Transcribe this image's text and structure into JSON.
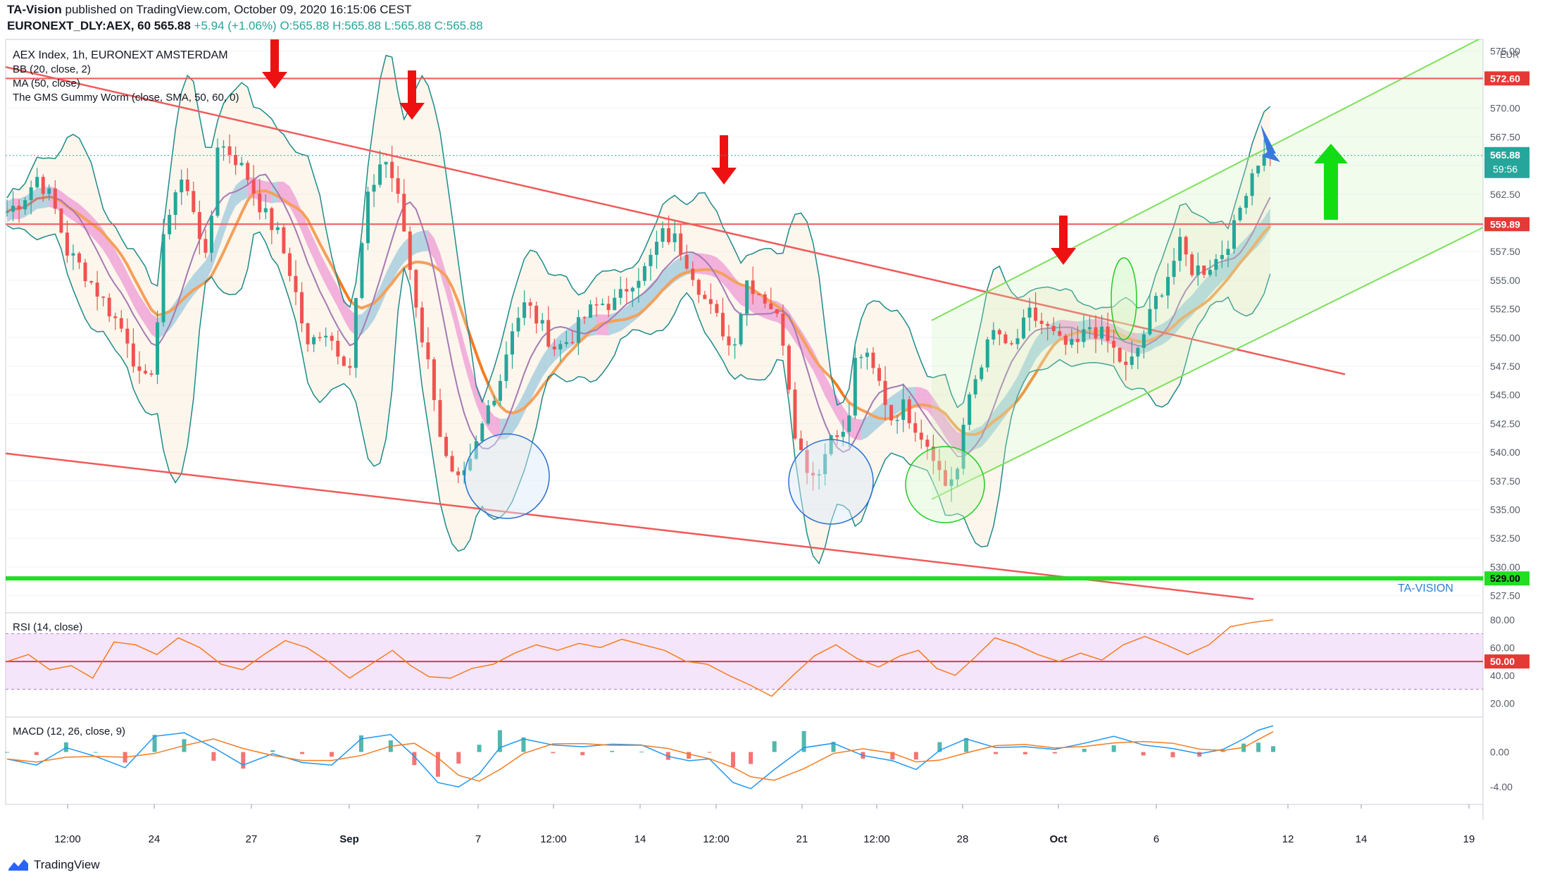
{
  "header": {
    "publisher_line": "TA-Vision published on TradingView.com, October 09, 2020 16:15:06 CEST",
    "publisher": "TA-Vision",
    "symbol_line": "EURONEXT_DLY:AEX, 60",
    "price": "565.88",
    "change": "+5.94 (+1.06%)",
    "ohlc": "O:565.88 H:565.88 L:565.88 C:565.88"
  },
  "legend": {
    "title": "AEX Index, 1h, EURONEXT AMSTERDAM",
    "bb": "BB (20, close, 2)",
    "ma": "MA (50, close)",
    "gms": "The GMS Gummy Worm (close, SMA, 50, 60, 0)",
    "rsi": "RSI (14, close)",
    "macd": "MACD (12, 26, close, 9)"
  },
  "watermark": "TA-VISION",
  "footer": {
    "brand": "TradingView"
  },
  "colors": {
    "up": "#26a69a",
    "down": "#ef5350",
    "trendline": "#f05a5a",
    "channel": "#7ee05a",
    "support": "#22dd22",
    "ma50": "#7b3fa8",
    "ema": "#f57c20",
    "bb": "#1d8a8a",
    "ribbon_pink": "#e040d0",
    "ribbon_blue": "#3aa0e0",
    "rsi_line": "#f57c20",
    "arrow_red": "#ee1111",
    "arrow_green": "#11dd11",
    "arrow_blue": "#3a78e0"
  },
  "chart_data": {
    "type": "candlestick",
    "currency": "EUR",
    "x_ticks": [
      "12:00",
      "24",
      "27",
      "Sep",
      "7",
      "12:00",
      "14",
      "12:00",
      "21",
      "12:00",
      "28",
      "Oct",
      "6",
      "12",
      "14",
      "19"
    ],
    "price_axis": {
      "ticks": [
        "575.00",
        "572.50",
        "570.00",
        "567.50",
        "565.00",
        "562.50",
        "560.00",
        "557.50",
        "555.00",
        "552.50",
        "550.00",
        "547.50",
        "545.00",
        "542.50",
        "540.00",
        "537.50",
        "535.00",
        "532.50",
        "530.00",
        "527.50"
      ],
      "ylim": [
        526,
        576
      ]
    },
    "levels": [
      {
        "label": "572.60",
        "value": 572.6,
        "kind": "resistance"
      },
      {
        "label": "559.89",
        "value": 559.89,
        "kind": "resistance"
      },
      {
        "label": "529.00",
        "value": 529.0,
        "kind": "support"
      }
    ],
    "last_price": {
      "label": "565.88",
      "countdown": "59:56"
    },
    "close_path": [
      [
        0,
        561
      ],
      [
        10,
        562
      ],
      [
        20,
        564
      ],
      [
        30,
        562
      ],
      [
        40,
        557.5
      ],
      [
        50,
        556
      ],
      [
        60,
        554
      ],
      [
        70,
        552
      ],
      [
        80,
        550
      ],
      [
        90,
        545.5
      ],
      [
        98,
        548
      ],
      [
        105,
        560
      ],
      [
        115,
        564
      ],
      [
        125,
        561
      ],
      [
        133,
        556
      ],
      [
        140,
        567
      ],
      [
        150,
        566
      ],
      [
        160,
        564
      ],
      [
        170,
        561
      ],
      [
        180,
        559
      ],
      [
        190,
        555
      ],
      [
        200,
        549
      ],
      [
        210,
        551
      ],
      [
        220,
        549
      ],
      [
        228,
        547.5
      ],
      [
        234,
        556
      ],
      [
        240,
        562
      ],
      [
        250,
        566
      ],
      [
        256,
        564
      ],
      [
        262,
        561
      ],
      [
        268,
        556
      ],
      [
        276,
        550
      ],
      [
        283,
        546
      ],
      [
        290,
        540
      ],
      [
        298,
        537
      ],
      [
        306,
        538
      ],
      [
        313,
        541
      ],
      [
        320,
        544
      ],
      [
        328,
        546.5
      ],
      [
        336,
        551
      ],
      [
        345,
        553
      ],
      [
        355,
        551
      ],
      [
        365,
        549
      ],
      [
        375,
        550
      ],
      [
        385,
        552
      ],
      [
        395,
        553
      ],
      [
        405,
        553
      ],
      [
        415,
        555
      ],
      [
        425,
        556
      ],
      [
        435,
        559
      ],
      [
        445,
        558.5
      ],
      [
        455,
        556
      ],
      [
        465,
        553
      ],
      [
        475,
        551
      ],
      [
        481,
        549
      ],
      [
        485,
        550.5
      ],
      [
        492,
        555
      ],
      [
        500,
        554
      ],
      [
        510,
        552.5
      ],
      [
        518,
        549
      ],
      [
        522,
        543
      ],
      [
        528,
        540
      ],
      [
        535,
        538
      ],
      [
        542,
        539
      ],
      [
        550,
        542.5
      ],
      [
        558,
        541
      ],
      [
        565,
        549
      ],
      [
        572,
        548
      ],
      [
        580,
        546
      ],
      [
        588,
        543
      ],
      [
        596,
        544
      ],
      [
        606,
        542
      ],
      [
        616,
        540
      ],
      [
        623,
        537
      ],
      [
        632,
        538.5
      ],
      [
        640,
        545
      ],
      [
        648,
        548
      ],
      [
        658,
        551
      ],
      [
        665,
        548.5
      ],
      [
        672,
        550
      ],
      [
        680,
        552
      ],
      [
        690,
        551
      ],
      [
        700,
        549.5
      ],
      [
        710,
        549
      ],
      [
        720,
        551
      ],
      [
        730,
        550
      ],
      [
        738,
        548.5
      ],
      [
        745,
        547
      ],
      [
        755,
        550
      ],
      [
        763,
        553
      ],
      [
        772,
        555.5
      ],
      [
        780,
        558
      ],
      [
        788,
        556
      ],
      [
        796,
        556
      ],
      [
        806,
        557
      ],
      [
        816,
        559.5
      ],
      [
        826,
        564
      ],
      [
        834,
        566
      ],
      [
        842,
        565
      ]
    ],
    "rsi": {
      "levels": [
        80,
        60,
        50,
        40,
        20
      ],
      "midline_label": "50.00",
      "ticks": [
        "80.00",
        "60.00",
        "40.00",
        "20.00"
      ],
      "path": [
        [
          0,
          50
        ],
        [
          14,
          55
        ],
        [
          28,
          44
        ],
        [
          42,
          47
        ],
        [
          56,
          38
        ],
        [
          70,
          64
        ],
        [
          84,
          62
        ],
        [
          98,
          55
        ],
        [
          112,
          67
        ],
        [
          126,
          60
        ],
        [
          140,
          48
        ],
        [
          154,
          44
        ],
        [
          168,
          55
        ],
        [
          182,
          65
        ],
        [
          196,
          60
        ],
        [
          210,
          50
        ],
        [
          224,
          38
        ],
        [
          238,
          48
        ],
        [
          252,
          58
        ],
        [
          264,
          47
        ],
        [
          276,
          39
        ],
        [
          290,
          38
        ],
        [
          304,
          45
        ],
        [
          318,
          48
        ],
        [
          332,
          56
        ],
        [
          346,
          62
        ],
        [
          360,
          58
        ],
        [
          374,
          63
        ],
        [
          388,
          60
        ],
        [
          402,
          66
        ],
        [
          416,
          62
        ],
        [
          430,
          58
        ],
        [
          444,
          50
        ],
        [
          458,
          48
        ],
        [
          472,
          40
        ],
        [
          486,
          33
        ],
        [
          500,
          25
        ],
        [
          514,
          40
        ],
        [
          528,
          54
        ],
        [
          542,
          62
        ],
        [
          556,
          52
        ],
        [
          570,
          46
        ],
        [
          584,
          54
        ],
        [
          596,
          58
        ],
        [
          608,
          45
        ],
        [
          620,
          40
        ],
        [
          632,
          52
        ],
        [
          646,
          67
        ],
        [
          660,
          62
        ],
        [
          674,
          55
        ],
        [
          688,
          50
        ],
        [
          702,
          56
        ],
        [
          716,
          51
        ],
        [
          730,
          62
        ],
        [
          744,
          68
        ],
        [
          758,
          62
        ],
        [
          772,
          55
        ],
        [
          786,
          62
        ],
        [
          800,
          75
        ],
        [
          814,
          78
        ],
        [
          828,
          80
        ]
      ]
    },
    "macd": {
      "ticks": [
        "0.00",
        "-4.00"
      ],
      "ylim": [
        -6,
        4
      ],
      "macd_path": [
        [
          0,
          -0.8
        ],
        [
          20,
          -1.5
        ],
        [
          40,
          0.5
        ],
        [
          60,
          -0.5
        ],
        [
          80,
          -1.8
        ],
        [
          100,
          1.8
        ],
        [
          120,
          2.2
        ],
        [
          140,
          0.5
        ],
        [
          160,
          -1.5
        ],
        [
          180,
          -0.2
        ],
        [
          200,
          -1.2
        ],
        [
          220,
          -1.5
        ],
        [
          240,
          1.5
        ],
        [
          260,
          2.0
        ],
        [
          276,
          -0.5
        ],
        [
          292,
          -3.5
        ],
        [
          306,
          -4.0
        ],
        [
          320,
          -2.5
        ],
        [
          334,
          0.5
        ],
        [
          350,
          1.5
        ],
        [
          370,
          0.8
        ],
        [
          390,
          0.6
        ],
        [
          410,
          0.9
        ],
        [
          430,
          0.8
        ],
        [
          448,
          -0.5
        ],
        [
          462,
          -1.0
        ],
        [
          476,
          -0.8
        ],
        [
          492,
          -3.5
        ],
        [
          504,
          -4.2
        ],
        [
          520,
          -2.0
        ],
        [
          540,
          0.5
        ],
        [
          560,
          1.0
        ],
        [
          580,
          -0.4
        ],
        [
          600,
          -1.0
        ],
        [
          616,
          -2.0
        ],
        [
          632,
          0.2
        ],
        [
          650,
          1.5
        ],
        [
          670,
          0.5
        ],
        [
          690,
          0.6
        ],
        [
          710,
          0.3
        ],
        [
          730,
          1.0
        ],
        [
          750,
          1.8
        ],
        [
          770,
          0.8
        ],
        [
          790,
          0.4
        ],
        [
          808,
          -0.2
        ],
        [
          824,
          0.3
        ],
        [
          838,
          1.5
        ],
        [
          848,
          2.5
        ],
        [
          858,
          3.0
        ]
      ]
    }
  }
}
